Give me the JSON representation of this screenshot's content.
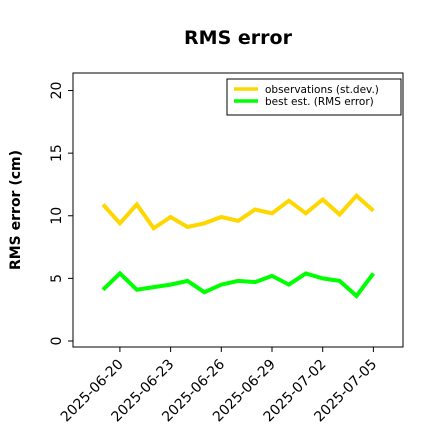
{
  "chart_data": {
    "type": "line",
    "title": "RMS error",
    "xlabel": "",
    "ylabel": "RMS error (cm)",
    "ylim": [
      0,
      21
    ],
    "yticks": [
      0,
      5,
      10,
      15,
      20
    ],
    "xtick_labels": [
      "2025-06-20",
      "2025-06-23",
      "2025-06-26",
      "2025-06-29",
      "2025-07-02",
      "2025-07-05"
    ],
    "highlighted_xtick": "2025-06-26",
    "highlight_color": "#1f8f1f",
    "grid": false,
    "legend_position": "top-right",
    "x": [
      "2025-06-19",
      "2025-06-20",
      "2025-06-21",
      "2025-06-22",
      "2025-06-23",
      "2025-06-24",
      "2025-06-25",
      "2025-06-26",
      "2025-06-27",
      "2025-06-28",
      "2025-06-29",
      "2025-06-30",
      "2025-07-01",
      "2025-07-02",
      "2025-07-03",
      "2025-07-04",
      "2025-07-05"
    ],
    "series": [
      {
        "name": "observations (st.dev.)",
        "color": "#ffd700",
        "values": [
          10.9,
          9.4,
          10.9,
          9.0,
          9.9,
          9.1,
          9.4,
          9.9,
          9.6,
          10.5,
          10.2,
          11.2,
          10.2,
          11.3,
          10.1,
          11.6,
          10.4
        ]
      },
      {
        "name": "best est. (RMS error)",
        "color": "#00ff00",
        "values": [
          4.1,
          5.4,
          4.1,
          4.3,
          4.5,
          4.8,
          3.9,
          4.5,
          4.8,
          4.7,
          5.2,
          4.5,
          5.4,
          5.0,
          4.8,
          3.6,
          5.4
        ]
      }
    ]
  }
}
